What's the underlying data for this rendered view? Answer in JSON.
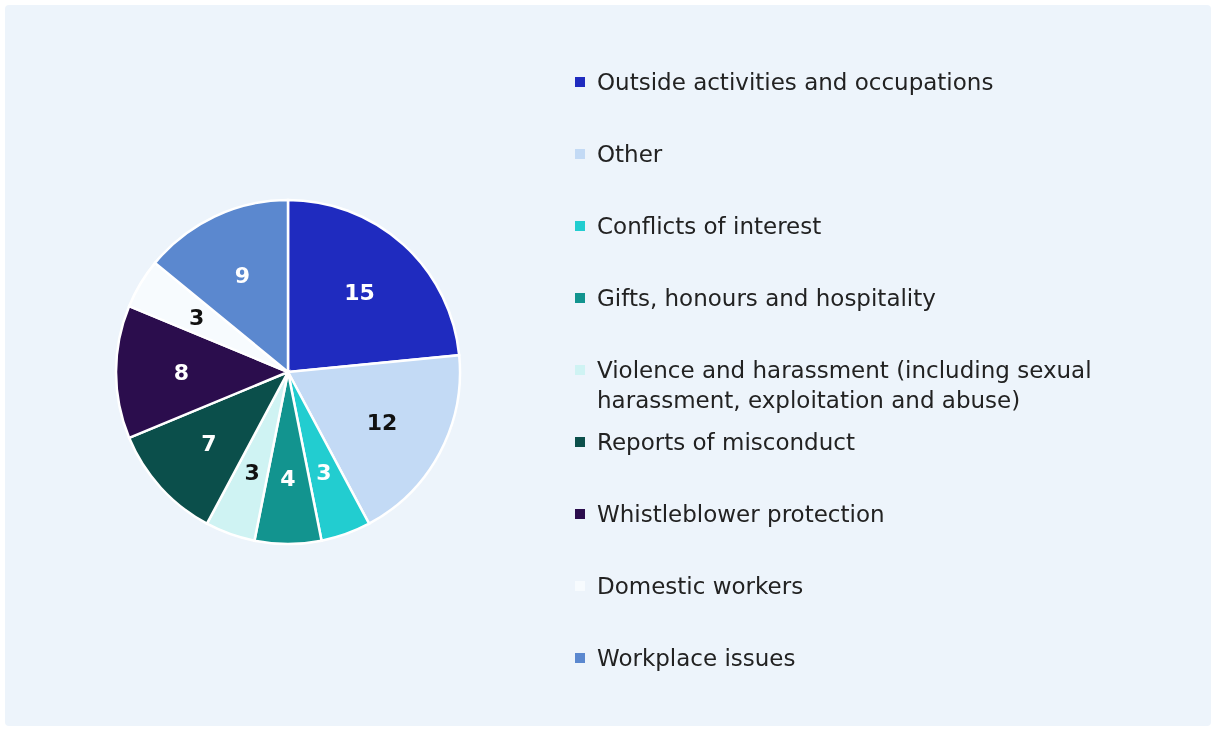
{
  "chart_data": {
    "type": "pie",
    "categories": [
      "Outside activities and occupations",
      "Other",
      "Conflicts of interest",
      "Gifts, honours and hospitality",
      "Violence and harassment (including sexual harassment, exploitation and abuse)",
      "Reports of misconduct",
      "Whistleblower protection",
      "Domestic workers",
      "Workplace issues"
    ],
    "values": [
      15,
      12,
      3,
      4,
      3,
      7,
      8,
      3,
      9
    ],
    "colors": [
      "#1f2bbf",
      "#c3daf5",
      "#22cdd0",
      "#12948f",
      "#cff3f3",
      "#0b4f4b",
      "#2b0d4d",
      "#f7fbfe",
      "#5b88cf"
    ],
    "data_labels": true,
    "legend": "right"
  }
}
